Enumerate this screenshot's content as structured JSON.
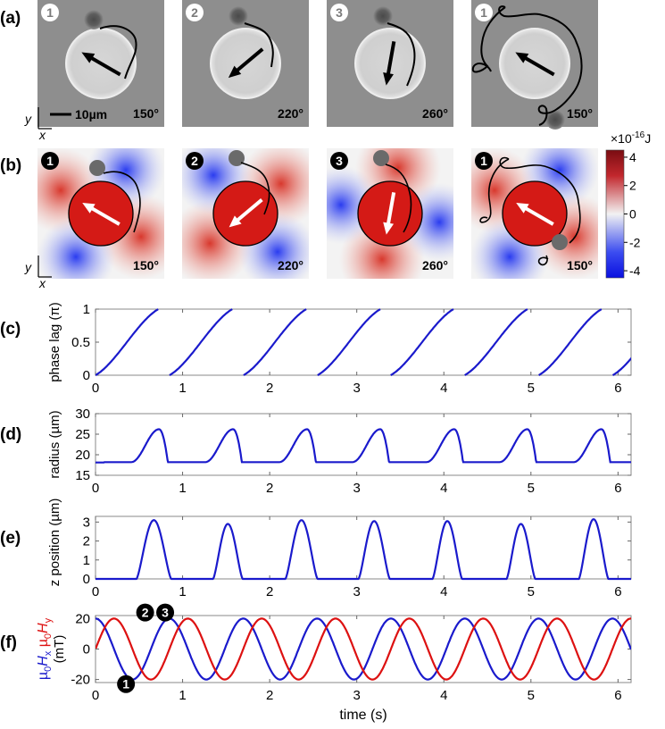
{
  "panel_labels": [
    "(a)",
    "(b)",
    "(c)",
    "(d)",
    "(e)",
    "(f)"
  ],
  "panel_a": {
    "frames": [
      {
        "badge": "1",
        "angle_label": "150°",
        "arrow_angle_deg": 150
      },
      {
        "badge": "2",
        "angle_label": "220°",
        "arrow_angle_deg": 220
      },
      {
        "badge": "3",
        "angle_label": "260°",
        "arrow_angle_deg": 260
      },
      {
        "badge": "1",
        "angle_label": "150°",
        "arrow_angle_deg": 150
      }
    ],
    "scale_bar_label": "10µm",
    "axis_x": "x",
    "axis_y": "y",
    "colors": {
      "background": "#8e8e8e",
      "disk": "#d0d0d0",
      "trajectory": "#000000"
    }
  },
  "panel_b": {
    "frames": [
      {
        "badge": "1",
        "angle_label": "150°",
        "arrow_angle_deg": 150
      },
      {
        "badge": "2",
        "angle_label": "220°",
        "arrow_angle_deg": 220
      },
      {
        "badge": "3",
        "angle_label": "260°",
        "arrow_angle_deg": 260
      },
      {
        "badge": "1",
        "angle_label": "150°",
        "arrow_angle_deg": 150
      }
    ],
    "axis_x": "x",
    "axis_y": "y",
    "colorbar": {
      "title": "×10",
      "exponent": "-16",
      "unit": "J",
      "ticks": [
        "4",
        "2",
        "0",
        "-2",
        "-4"
      ],
      "range": [
        -4.5,
        4.5
      ],
      "colors": {
        "high": "#b0161e",
        "mid": "#f2f2f2",
        "low": "#0a1ef0"
      }
    }
  },
  "chart_data": [
    {
      "type": "line",
      "panel": "(c)",
      "ylabel": "phase lag (π)",
      "xlim": [
        0,
        6.15
      ],
      "ylim": [
        0,
        1
      ],
      "yticks": [
        "0",
        "0.5",
        "1"
      ],
      "xticks": [
        "0",
        "1",
        "2",
        "3",
        "4",
        "5",
        "6"
      ],
      "period": 0.848,
      "segments": [
        {
          "x_start": 0.0,
          "x_end": 0.72,
          "y_start": 0,
          "y_end": 1
        },
        {
          "x_start": 0.85,
          "x_end": 1.57,
          "y_start": 0,
          "y_end": 1
        },
        {
          "x_start": 1.7,
          "x_end": 2.42,
          "y_start": 0,
          "y_end": 1
        },
        {
          "x_start": 2.55,
          "x_end": 3.27,
          "y_start": 0,
          "y_end": 1
        },
        {
          "x_start": 3.39,
          "x_end": 4.11,
          "y_start": 0,
          "y_end": 1
        },
        {
          "x_start": 4.24,
          "x_end": 4.96,
          "y_start": 0,
          "y_end": 1
        },
        {
          "x_start": 5.09,
          "x_end": 5.81,
          "y_start": 0,
          "y_end": 1
        },
        {
          "x_start": 5.94,
          "x_end": 6.66,
          "y_start": 0,
          "y_end": 1
        }
      ],
      "color": "#1a1acc"
    },
    {
      "type": "line",
      "panel": "(d)",
      "ylabel": "radius (µm)",
      "xlim": [
        0,
        6.15
      ],
      "ylim": [
        15,
        30
      ],
      "yticks": [
        "15",
        "20",
        "25",
        "30"
      ],
      "xticks": [
        "0",
        "1",
        "2",
        "3",
        "4",
        "5",
        "6"
      ],
      "baseline": 18.2,
      "peak": 26.2,
      "peak_times": [
        0.73,
        1.58,
        2.43,
        3.27,
        4.12,
        4.96,
        5.81
      ],
      "color": "#1a1acc"
    },
    {
      "type": "line",
      "panel": "(e)",
      "ylabel": "z position (µm)",
      "xlim": [
        0,
        6.15
      ],
      "ylim": [
        0,
        3.3
      ],
      "yticks": [
        "0",
        "1",
        "2",
        "3"
      ],
      "xticks": [
        "0",
        "1",
        "2",
        "3",
        "4",
        "5",
        "6"
      ],
      "pulses": [
        {
          "start": 0.47,
          "end": 0.87,
          "peak": 3.1
        },
        {
          "start": 1.35,
          "end": 1.69,
          "peak": 2.9
        },
        {
          "start": 2.18,
          "end": 2.55,
          "peak": 3.1
        },
        {
          "start": 3.02,
          "end": 3.38,
          "peak": 3.05
        },
        {
          "start": 3.87,
          "end": 4.21,
          "peak": 3.05
        },
        {
          "start": 4.72,
          "end": 5.05,
          "peak": 2.9
        },
        {
          "start": 5.55,
          "end": 5.89,
          "peak": 3.15
        }
      ],
      "color": "#1a1acc"
    },
    {
      "type": "line",
      "panel": "(f)",
      "xlabel": "time (s)",
      "xlim": [
        0,
        6.15
      ],
      "ylim": [
        -22,
        22
      ],
      "yticks": [
        "-20",
        "0",
        "20"
      ],
      "xticks": [
        "0",
        "1",
        "2",
        "3",
        "4",
        "5",
        "6"
      ],
      "period": 0.848,
      "amplitude": 20,
      "series": [
        {
          "function": "cos",
          "color": "#1a1acc"
        },
        {
          "function": "sin",
          "color": "#dd1111"
        }
      ],
      "ylabel_parts": {
        "mu": "µ",
        "zero": "0",
        "h": "H",
        "x_sub": "x",
        "y_sub": "y",
        "unit": "(mT)"
      },
      "markers": [
        {
          "badge": "1",
          "x": 0.35,
          "y": -23
        },
        {
          "badge": "2",
          "x": 0.57,
          "y": 24
        },
        {
          "badge": "3",
          "x": 0.8,
          "y": 24
        }
      ]
    }
  ]
}
